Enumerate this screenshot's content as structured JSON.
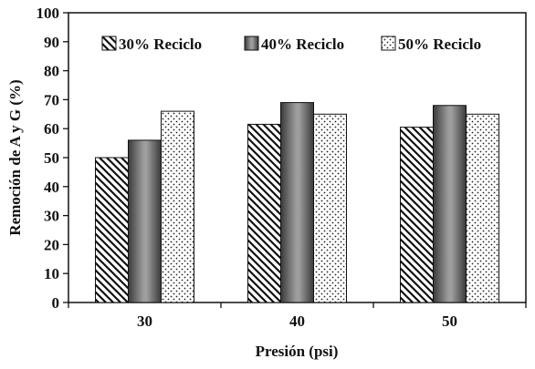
{
  "chart_data": {
    "type": "bar",
    "title": "",
    "xlabel": "Presión (psi)",
    "ylabel": "Remoción de A y G (%)",
    "categories": [
      "30",
      "40",
      "50"
    ],
    "ylim": [
      0,
      100
    ],
    "yticks": [
      0,
      10,
      20,
      30,
      40,
      50,
      60,
      70,
      80,
      90,
      100
    ],
    "grid": false,
    "legend_position": "top",
    "series": [
      {
        "name": "30% Reciclo",
        "values": [
          50,
          61.5,
          60.5
        ],
        "pattern": "diagonal-hatch",
        "color": "#222222"
      },
      {
        "name": "40% Reciclo",
        "values": [
          56,
          69,
          68
        ],
        "pattern": "gray-gradient",
        "color": "#777777"
      },
      {
        "name": "50% Reciclo",
        "values": [
          66,
          65,
          65
        ],
        "pattern": "dots",
        "color": "#333333"
      }
    ]
  }
}
